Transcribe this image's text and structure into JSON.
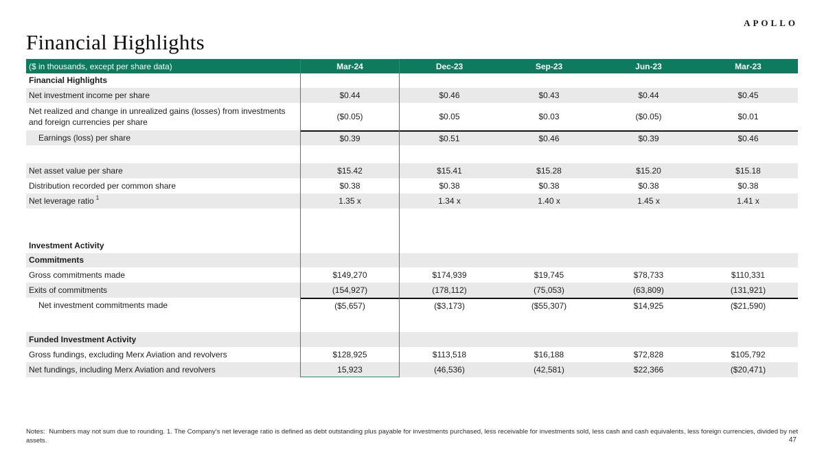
{
  "brand": {
    "logo_text": "APOLLO"
  },
  "page": {
    "title": "Financial Highlights",
    "page_number": "47"
  },
  "colors": {
    "header_green": "#0F7B5E",
    "highlight_border": "#2F8C6B",
    "row_gray": "#E9E9E9"
  },
  "table": {
    "header": {
      "label": "($ in thousands, except per share data)",
      "columns": [
        "Mar-24",
        "Dec-23",
        "Sep-23",
        "Jun-23",
        "Mar-23"
      ],
      "highlighted_column": "Mar-24"
    },
    "rows": [
      {
        "label": "Financial Highlights",
        "bold": true,
        "shaded": false,
        "size": "sec",
        "values": [
          "",
          "",
          "",
          "",
          ""
        ]
      },
      {
        "label": "Net investment income per share",
        "shaded": true,
        "size": "n",
        "values": [
          "$0.44",
          "$0.46",
          "$0.43",
          "$0.44",
          "$0.45"
        ]
      },
      {
        "label": "Net realized and change in unrealized gains (losses) from investments and foreign currencies per share",
        "shaded": false,
        "size": "t",
        "values": [
          "($0.05)",
          "$0.05",
          "$0.03",
          "($0.05)",
          "$0.01"
        ]
      },
      {
        "label": "Earnings (loss) per share",
        "indent": true,
        "shaded": true,
        "topline": true,
        "size": "n",
        "values": [
          "$0.39",
          "$0.51",
          "$0.46",
          "$0.39",
          "$0.46"
        ]
      },
      {
        "label": "",
        "blank": true,
        "shaded": false,
        "size": "s1",
        "values": [
          "",
          "",
          "",
          "",
          ""
        ]
      },
      {
        "label": "Net asset value per share",
        "shaded": true,
        "size": "n",
        "values": [
          "$15.42",
          "$15.41",
          "$15.28",
          "$15.20",
          "$15.18"
        ]
      },
      {
        "label": "Distribution recorded per common share",
        "shaded": false,
        "size": "n",
        "values": [
          "$0.38",
          "$0.38",
          "$0.38",
          "$0.38",
          "$0.38"
        ]
      },
      {
        "label": "Net leverage ratio",
        "sup": "1",
        "shaded": true,
        "size": "n",
        "values": [
          "1.35 x",
          "1.34 x",
          "1.40 x",
          "1.45 x",
          "1.41 x"
        ]
      },
      {
        "label": "",
        "blank": true,
        "shaded": false,
        "size": "s2",
        "values": [
          "",
          "",
          "",
          "",
          ""
        ]
      },
      {
        "label": "Investment Activity",
        "bold": true,
        "shaded": false,
        "size": "sec",
        "values": [
          "",
          "",
          "",
          "",
          ""
        ]
      },
      {
        "label": "Commitments",
        "bold": true,
        "shaded": true,
        "size": "sec",
        "values": [
          "",
          "",
          "",
          "",
          ""
        ]
      },
      {
        "label": "Gross commitments made",
        "shaded": false,
        "size": "n",
        "values": [
          "$149,270",
          "$174,939",
          "$19,745",
          "$78,733",
          "$110,331"
        ]
      },
      {
        "label": "Exits of commitments",
        "shaded": true,
        "size": "n",
        "values": [
          "(154,927)",
          "(178,112)",
          "(75,053)",
          "(63,809)",
          "(131,921)"
        ]
      },
      {
        "label": "Net investment commitments made",
        "indent": true,
        "shaded": false,
        "topline": true,
        "size": "n",
        "values": [
          "($5,657)",
          "($3,173)",
          "($55,307)",
          "$14,925",
          "($21,590)"
        ]
      },
      {
        "label": "",
        "blank": true,
        "shaded": false,
        "size": "s3",
        "values": [
          "",
          "",
          "",
          "",
          ""
        ]
      },
      {
        "label": "Funded Investment Activity",
        "bold": true,
        "shaded": true,
        "size": "n",
        "values": [
          "",
          "",
          "",
          "",
          ""
        ]
      },
      {
        "label": "Gross fundings, excluding Merx Aviation and revolvers",
        "shaded": false,
        "size": "n",
        "values": [
          "$128,925",
          "$113,518",
          "$16,188",
          "$72,828",
          "$105,792"
        ]
      },
      {
        "label": "Net fundings, including Merx Aviation and revolvers",
        "shaded": true,
        "size": "n",
        "values": [
          "15,923",
          "(46,536)",
          "(42,581)",
          "$22,366",
          "($20,471)"
        ]
      }
    ]
  },
  "footer": {
    "notes": "Notes:  Numbers may not sum due to rounding. 1. The Company’s net leverage ratio is defined as debt outstanding plus payable for investments purchased, less receivable for investments sold, less cash and cash equivalents, less foreign currencies, divided by net assets."
  }
}
